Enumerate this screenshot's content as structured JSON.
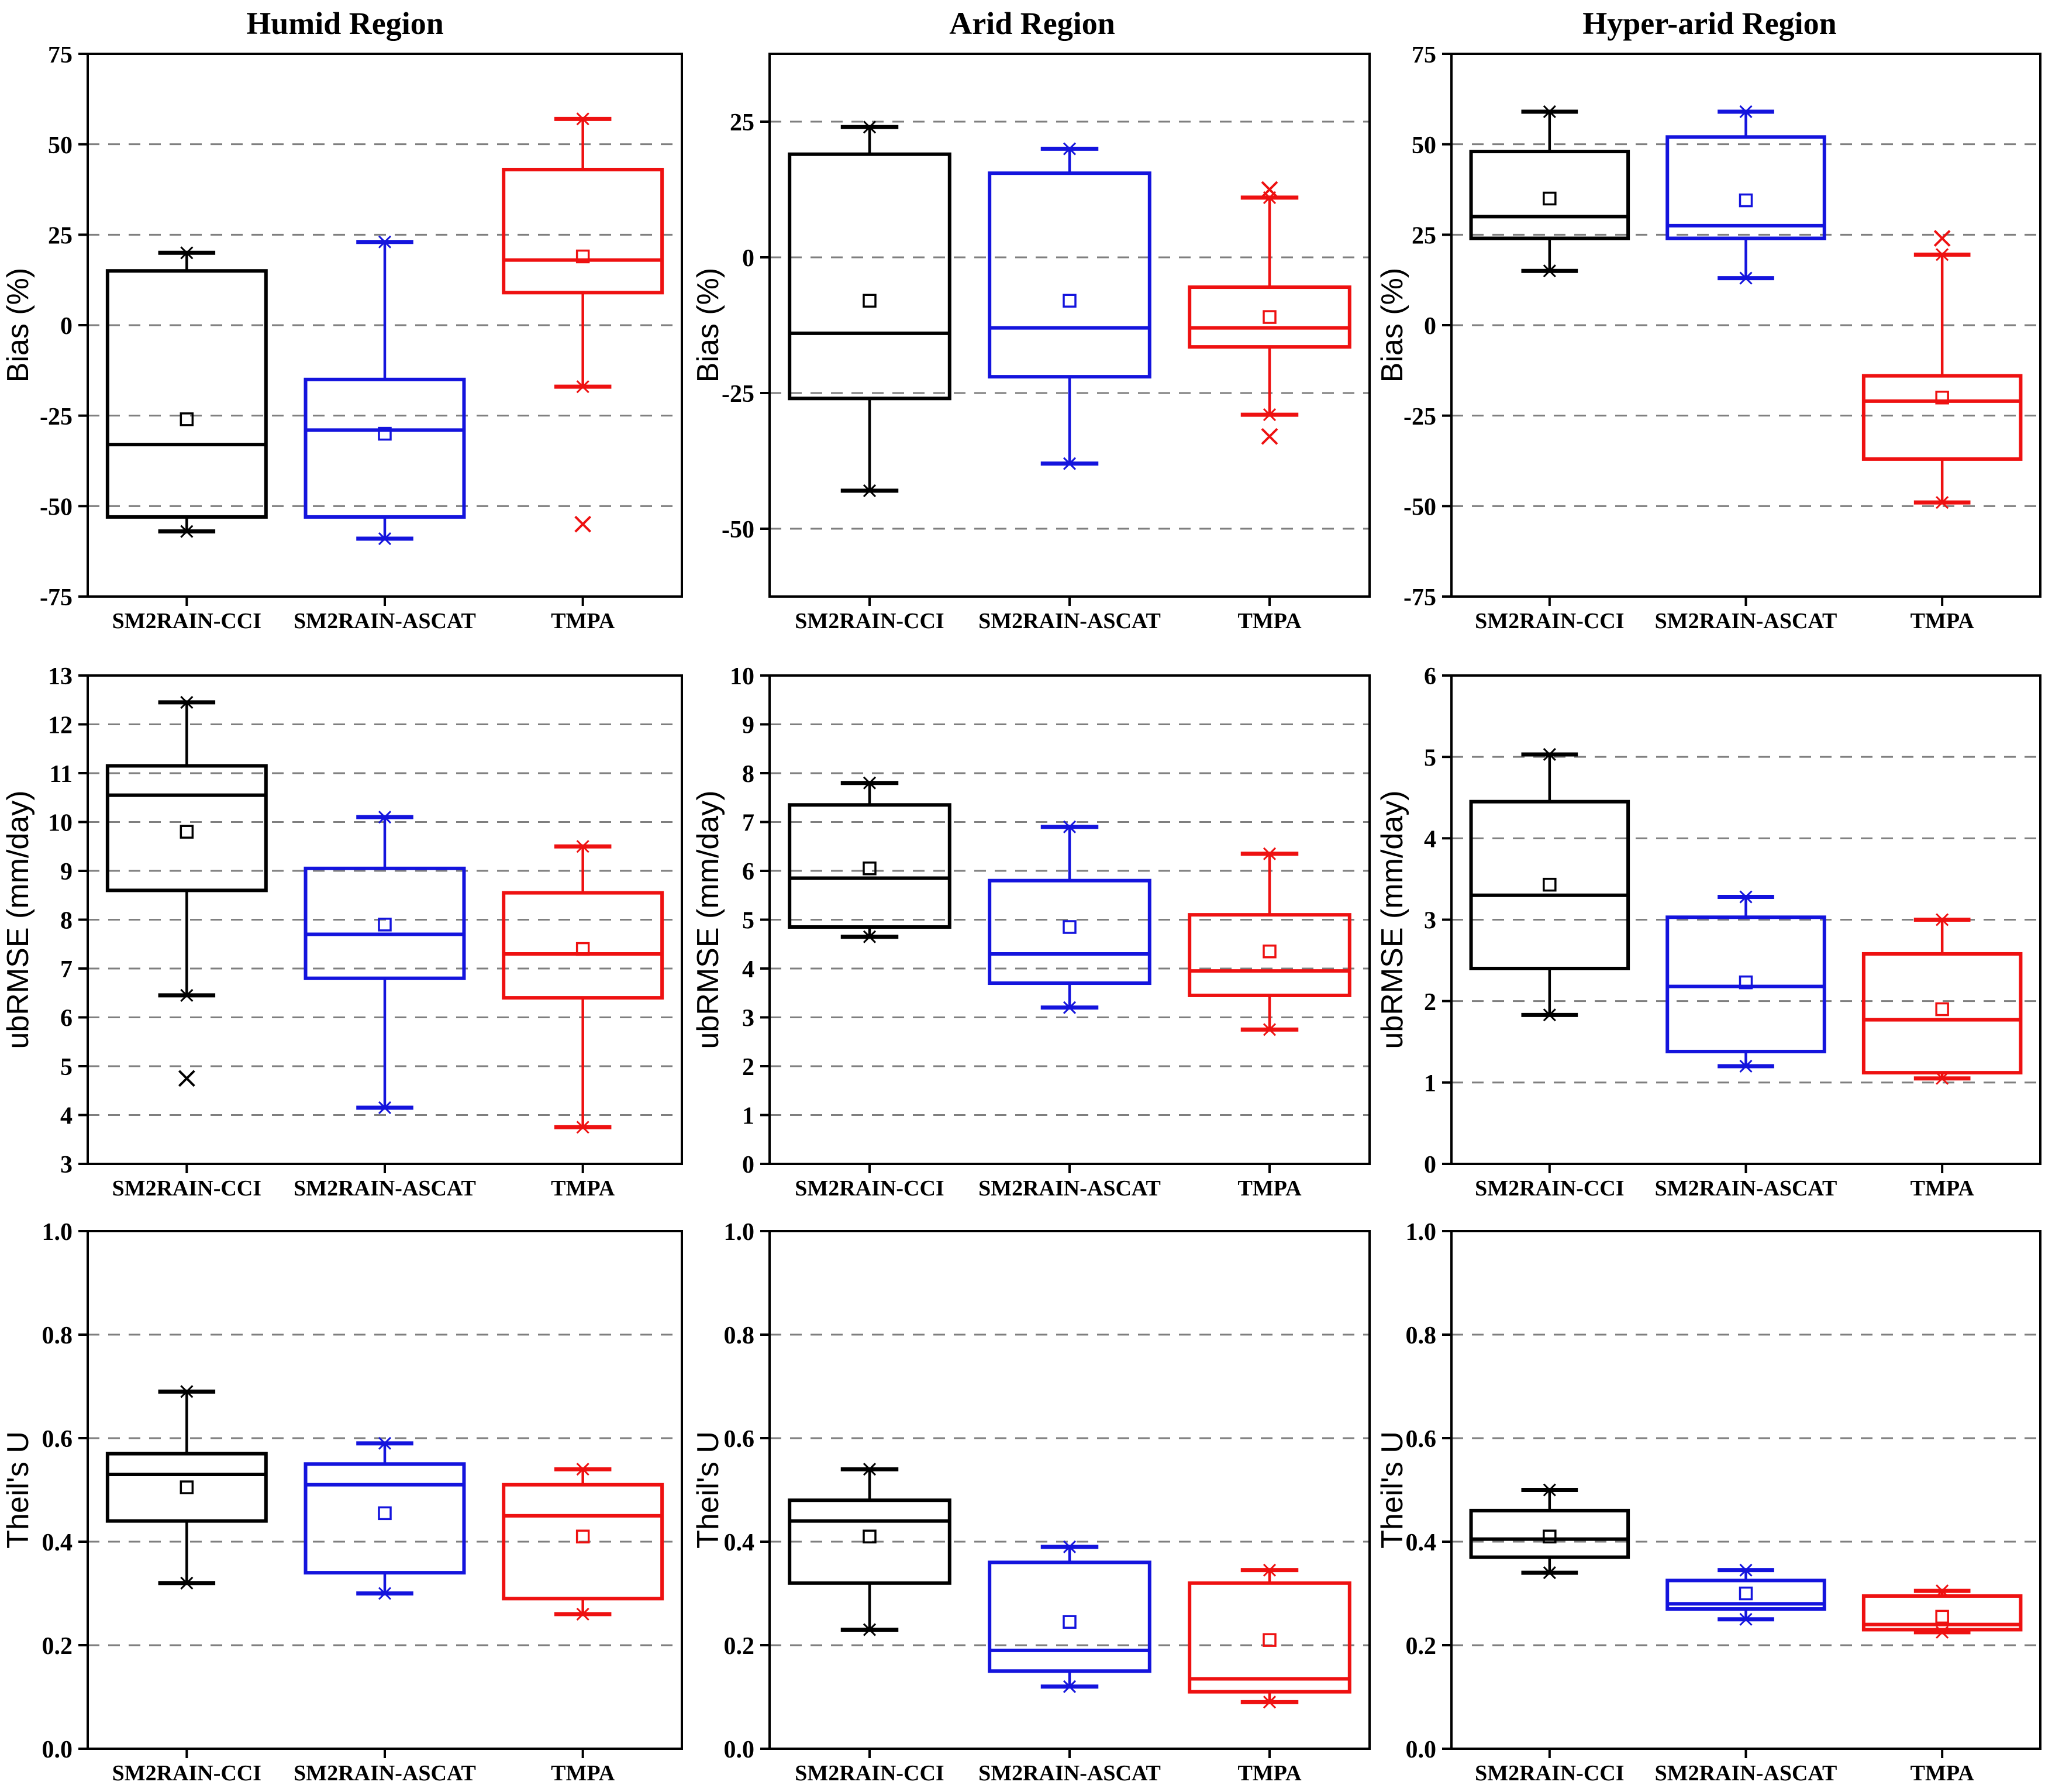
{
  "titles": [
    "Humid Region",
    "Arid Region",
    "Hyper-arid Region"
  ],
  "categories": [
    "SM2RAIN-CCI",
    "SM2RAIN-ASCAT",
    "TMPA"
  ],
  "colors": {
    "cci": "#000000",
    "ascat": "#1414dd",
    "tmpa": "#ee1111",
    "grid": "#7f7f7f",
    "frame": "#000000"
  },
  "chart_data": {
    "type": "box",
    "layout": "3x3 grid; columns = climate regions, rows = metrics",
    "panels": [
      {
        "id": "bias-humid",
        "region": "Humid Region",
        "ylabel": "Bias (%)",
        "ylim": [
          -75,
          75
        ],
        "yticks": [
          {
            "v": 75,
            "label": "75"
          },
          {
            "v": 50,
            "label": "50"
          },
          {
            "v": 25,
            "label": "25"
          },
          {
            "v": 0,
            "label": "0"
          },
          {
            "v": -25,
            "label": "-25"
          },
          {
            "v": -50,
            "label": "-50"
          },
          {
            "v": -75,
            "label": "-75"
          }
        ],
        "grid": [
          50,
          25,
          0,
          -25,
          -50
        ],
        "boxes": [
          {
            "product": "SM2RAIN-CCI",
            "color_key": "cci",
            "whisker_low": -57,
            "q1": -53,
            "median": -33,
            "q3": 15,
            "whisker_high": 20,
            "mean": -26,
            "outliers": []
          },
          {
            "product": "SM2RAIN-ASCAT",
            "color_key": "ascat",
            "whisker_low": -59,
            "q1": -53,
            "median": -29,
            "q3": -15,
            "whisker_high": 23,
            "mean": -30,
            "outliers": []
          },
          {
            "product": "TMPA",
            "color_key": "tmpa",
            "whisker_low": -17,
            "q1": 9,
            "median": 18,
            "q3": 43,
            "whisker_high": 57,
            "mean": 19,
            "outliers": [
              -55
            ]
          }
        ]
      },
      {
        "id": "bias-arid",
        "region": "Arid Region",
        "ylabel": "Bias (%)",
        "ylim": [
          -62.5,
          37.5
        ],
        "yticks": [
          {
            "v": 25,
            "label": "25"
          },
          {
            "v": 0,
            "label": "0"
          },
          {
            "v": -25,
            "label": "-25"
          },
          {
            "v": -50,
            "label": "-50"
          }
        ],
        "grid": [
          25,
          0,
          -25,
          -50
        ],
        "boxes": [
          {
            "product": "SM2RAIN-CCI",
            "color_key": "cci",
            "whisker_low": -43,
            "q1": -26,
            "median": -14,
            "q3": 19,
            "whisker_high": 24,
            "mean": -8,
            "outliers": []
          },
          {
            "product": "SM2RAIN-ASCAT",
            "color_key": "ascat",
            "whisker_low": -38,
            "q1": -22,
            "median": -13,
            "q3": 15.5,
            "whisker_high": 20,
            "mean": -8,
            "outliers": []
          },
          {
            "product": "TMPA",
            "color_key": "tmpa",
            "whisker_low": -29,
            "q1": -16.5,
            "median": -13,
            "q3": -5.5,
            "whisker_high": 11,
            "mean": -11,
            "outliers": [
              12.5,
              -33
            ]
          }
        ]
      },
      {
        "id": "bias-hyper-arid",
        "region": "Hyper-arid Region",
        "ylabel": "Bias (%)",
        "ylim": [
          -75,
          75
        ],
        "yticks": [
          {
            "v": 75,
            "label": "75"
          },
          {
            "v": 50,
            "label": "50"
          },
          {
            "v": 25,
            "label": "25"
          },
          {
            "v": 0,
            "label": "0"
          },
          {
            "v": -25,
            "label": "-25"
          },
          {
            "v": -50,
            "label": "-50"
          },
          {
            "v": -75,
            "label": "-75"
          }
        ],
        "grid": [
          50,
          25,
          0,
          -25,
          -50
        ],
        "boxes": [
          {
            "product": "SM2RAIN-CCI",
            "color_key": "cci",
            "whisker_low": 15,
            "q1": 24,
            "median": 30,
            "q3": 48,
            "whisker_high": 59,
            "mean": 35,
            "outliers": []
          },
          {
            "product": "SM2RAIN-ASCAT",
            "color_key": "ascat",
            "whisker_low": 13,
            "q1": 24,
            "median": 27.5,
            "q3": 52,
            "whisker_high": 59,
            "mean": 34.5,
            "outliers": []
          },
          {
            "product": "TMPA",
            "color_key": "tmpa",
            "whisker_low": -49,
            "q1": -37,
            "median": -21,
            "q3": -14,
            "whisker_high": 19.5,
            "mean": -20,
            "outliers": [
              24
            ]
          }
        ]
      },
      {
        "id": "ubrmse-humid",
        "region": "Humid Region",
        "ylabel": "ubRMSE (mm/day)",
        "ylim": [
          3,
          13
        ],
        "yticks": [
          {
            "v": 13,
            "label": "13"
          },
          {
            "v": 12,
            "label": "12"
          },
          {
            "v": 11,
            "label": "11"
          },
          {
            "v": 10,
            "label": "10"
          },
          {
            "v": 9,
            "label": "9"
          },
          {
            "v": 8,
            "label": "8"
          },
          {
            "v": 7,
            "label": "7"
          },
          {
            "v": 6,
            "label": "6"
          },
          {
            "v": 5,
            "label": "5"
          },
          {
            "v": 4,
            "label": "4"
          },
          {
            "v": 3,
            "label": "3"
          }
        ],
        "grid": [
          12,
          11,
          10,
          9,
          8,
          7,
          6,
          5,
          4
        ],
        "boxes": [
          {
            "product": "SM2RAIN-CCI",
            "color_key": "cci",
            "whisker_low": 6.45,
            "q1": 8.6,
            "median": 10.55,
            "q3": 11.15,
            "whisker_high": 12.45,
            "mean": 9.8,
            "outliers": [
              4.75
            ]
          },
          {
            "product": "SM2RAIN-ASCAT",
            "color_key": "ascat",
            "whisker_low": 4.15,
            "q1": 6.8,
            "median": 7.7,
            "q3": 9.05,
            "whisker_high": 10.1,
            "mean": 7.9,
            "outliers": []
          },
          {
            "product": "TMPA",
            "color_key": "tmpa",
            "whisker_low": 3.75,
            "q1": 6.4,
            "median": 7.3,
            "q3": 8.55,
            "whisker_high": 9.5,
            "mean": 7.4,
            "outliers": []
          }
        ]
      },
      {
        "id": "ubrmse-arid",
        "region": "Arid Region",
        "ylabel": "ubRMSE (mm/day)",
        "ylim": [
          0,
          10
        ],
        "yticks": [
          {
            "v": 10,
            "label": "10"
          },
          {
            "v": 9,
            "label": "9"
          },
          {
            "v": 8,
            "label": "8"
          },
          {
            "v": 7,
            "label": "7"
          },
          {
            "v": 6,
            "label": "6"
          },
          {
            "v": 5,
            "label": "5"
          },
          {
            "v": 4,
            "label": "4"
          },
          {
            "v": 3,
            "label": "3"
          },
          {
            "v": 2,
            "label": "2"
          },
          {
            "v": 1,
            "label": "1"
          },
          {
            "v": 0,
            "label": "0"
          }
        ],
        "grid": [
          9,
          8,
          7,
          6,
          5,
          4,
          3,
          2,
          1
        ],
        "boxes": [
          {
            "product": "SM2RAIN-CCI",
            "color_key": "cci",
            "whisker_low": 4.65,
            "q1": 4.85,
            "median": 5.85,
            "q3": 7.35,
            "whisker_high": 7.8,
            "mean": 6.05,
            "outliers": []
          },
          {
            "product": "SM2RAIN-ASCAT",
            "color_key": "ascat",
            "whisker_low": 3.2,
            "q1": 3.7,
            "median": 4.3,
            "q3": 5.8,
            "whisker_high": 6.9,
            "mean": 4.85,
            "outliers": []
          },
          {
            "product": "TMPA",
            "color_key": "tmpa",
            "whisker_low": 2.75,
            "q1": 3.45,
            "median": 3.95,
            "q3": 5.1,
            "whisker_high": 6.35,
            "mean": 4.35,
            "outliers": []
          }
        ]
      },
      {
        "id": "ubrmse-hyper-arid",
        "region": "Hyper-arid Region",
        "ylabel": "ubRMSE (mm/day)",
        "ylim": [
          0,
          6
        ],
        "yticks": [
          {
            "v": 6,
            "label": "6"
          },
          {
            "v": 5,
            "label": "5"
          },
          {
            "v": 4,
            "label": "4"
          },
          {
            "v": 3,
            "label": "3"
          },
          {
            "v": 2,
            "label": "2"
          },
          {
            "v": 1,
            "label": "1"
          },
          {
            "v": 0,
            "label": "0"
          }
        ],
        "grid": [
          5,
          4,
          3,
          2,
          1
        ],
        "boxes": [
          {
            "product": "SM2RAIN-CCI",
            "color_key": "cci",
            "whisker_low": 1.83,
            "q1": 2.4,
            "median": 3.3,
            "q3": 4.45,
            "whisker_high": 5.03,
            "mean": 3.43,
            "outliers": []
          },
          {
            "product": "SM2RAIN-ASCAT",
            "color_key": "ascat",
            "whisker_low": 1.2,
            "q1": 1.38,
            "median": 2.18,
            "q3": 3.03,
            "whisker_high": 3.28,
            "mean": 2.23,
            "outliers": []
          },
          {
            "product": "TMPA",
            "color_key": "tmpa",
            "whisker_low": 1.05,
            "q1": 1.12,
            "median": 1.77,
            "q3": 2.58,
            "whisker_high": 3.0,
            "mean": 1.9,
            "outliers": []
          }
        ]
      },
      {
        "id": "theils-u-humid",
        "region": "Humid Region",
        "ylabel": "Theil's U",
        "ylim": [
          0,
          1
        ],
        "yticks": [
          {
            "v": 1,
            "label": "1.0"
          },
          {
            "v": 0.8,
            "label": "0.8"
          },
          {
            "v": 0.6,
            "label": "0.6"
          },
          {
            "v": 0.4,
            "label": "0.4"
          },
          {
            "v": 0.2,
            "label": "0.2"
          },
          {
            "v": 0,
            "label": "0.0"
          }
        ],
        "grid": [
          0.8,
          0.6,
          0.4,
          0.2
        ],
        "boxes": [
          {
            "product": "SM2RAIN-CCI",
            "color_key": "cci",
            "whisker_low": 0.32,
            "q1": 0.44,
            "median": 0.53,
            "q3": 0.57,
            "whisker_high": 0.69,
            "mean": 0.505,
            "outliers": []
          },
          {
            "product": "SM2RAIN-ASCAT",
            "color_key": "ascat",
            "whisker_low": 0.3,
            "q1": 0.34,
            "median": 0.51,
            "q3": 0.55,
            "whisker_high": 0.59,
            "mean": 0.455,
            "outliers": []
          },
          {
            "product": "TMPA",
            "color_key": "tmpa",
            "whisker_low": 0.26,
            "q1": 0.29,
            "median": 0.45,
            "q3": 0.51,
            "whisker_high": 0.54,
            "mean": 0.41,
            "outliers": []
          }
        ]
      },
      {
        "id": "theils-u-arid",
        "region": "Arid Region",
        "ylabel": "Theil's U",
        "ylim": [
          0,
          1
        ],
        "yticks": [
          {
            "v": 1,
            "label": "1.0"
          },
          {
            "v": 0.8,
            "label": "0.8"
          },
          {
            "v": 0.6,
            "label": "0.6"
          },
          {
            "v": 0.4,
            "label": "0.4"
          },
          {
            "v": 0.2,
            "label": "0.2"
          },
          {
            "v": 0,
            "label": "0.0"
          }
        ],
        "grid": [
          0.8,
          0.6,
          0.4,
          0.2
        ],
        "boxes": [
          {
            "product": "SM2RAIN-CCI",
            "color_key": "cci",
            "whisker_low": 0.23,
            "q1": 0.32,
            "median": 0.44,
            "q3": 0.48,
            "whisker_high": 0.54,
            "mean": 0.41,
            "outliers": []
          },
          {
            "product": "SM2RAIN-ASCAT",
            "color_key": "ascat",
            "whisker_low": 0.12,
            "q1": 0.15,
            "median": 0.19,
            "q3": 0.36,
            "whisker_high": 0.39,
            "mean": 0.245,
            "outliers": []
          },
          {
            "product": "TMPA",
            "color_key": "tmpa",
            "whisker_low": 0.09,
            "q1": 0.11,
            "median": 0.135,
            "q3": 0.32,
            "whisker_high": 0.345,
            "mean": 0.21,
            "outliers": []
          }
        ]
      },
      {
        "id": "theils-u-hyper-arid",
        "region": "Hyper-arid Region",
        "ylabel": "Theil's U",
        "ylim": [
          0,
          1
        ],
        "yticks": [
          {
            "v": 1,
            "label": "1.0"
          },
          {
            "v": 0.8,
            "label": "0.8"
          },
          {
            "v": 0.6,
            "label": "0.6"
          },
          {
            "v": 0.4,
            "label": "0.4"
          },
          {
            "v": 0.2,
            "label": "0.2"
          },
          {
            "v": 0,
            "label": "0.0"
          }
        ],
        "grid": [
          0.8,
          0.6,
          0.4,
          0.2
        ],
        "boxes": [
          {
            "product": "SM2RAIN-CCI",
            "color_key": "cci",
            "whisker_low": 0.34,
            "q1": 0.37,
            "median": 0.405,
            "q3": 0.46,
            "whisker_high": 0.5,
            "mean": 0.41,
            "outliers": []
          },
          {
            "product": "SM2RAIN-ASCAT",
            "color_key": "ascat",
            "whisker_low": 0.25,
            "q1": 0.27,
            "median": 0.28,
            "q3": 0.325,
            "whisker_high": 0.345,
            "mean": 0.3,
            "outliers": []
          },
          {
            "product": "TMPA",
            "color_key": "tmpa",
            "whisker_low": 0.225,
            "q1": 0.23,
            "median": 0.24,
            "q3": 0.295,
            "whisker_high": 0.305,
            "mean": 0.255,
            "outliers": []
          }
        ]
      }
    ]
  }
}
